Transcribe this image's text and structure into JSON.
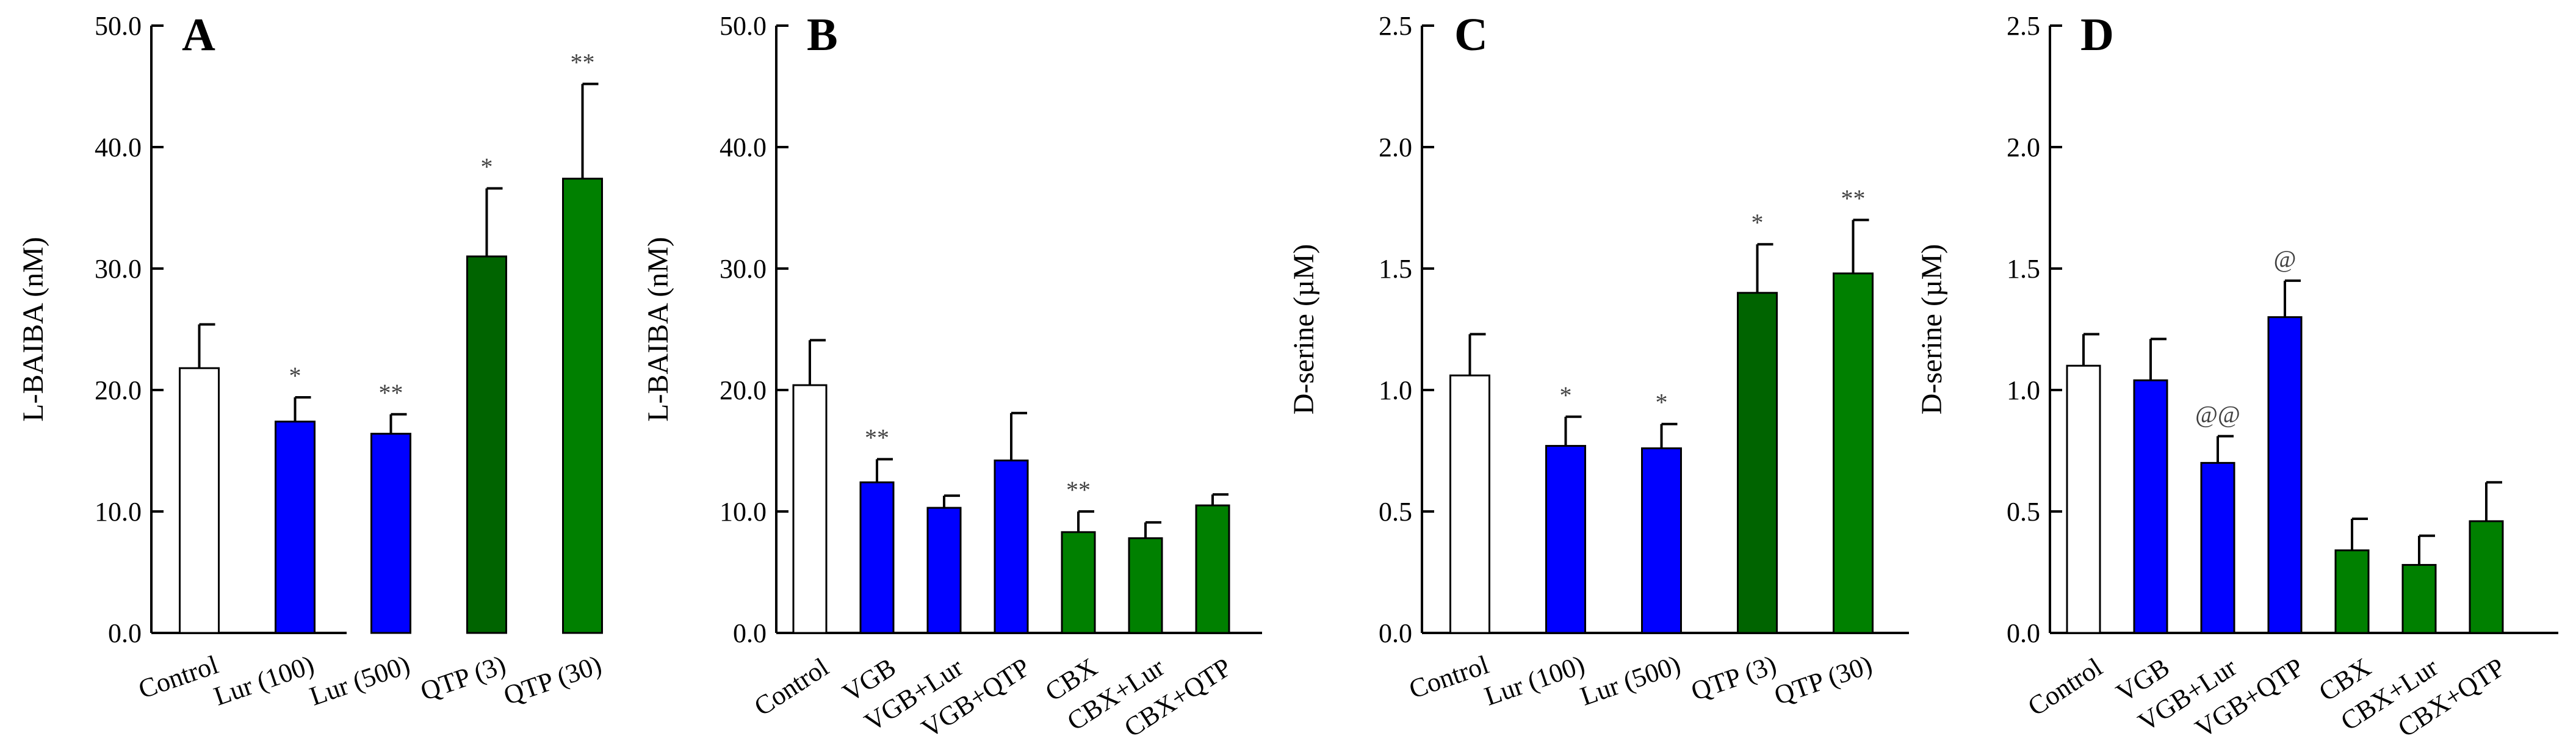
{
  "colors": {
    "control": "#ffffff",
    "blue": "#0000ff",
    "dark_green": "#006400",
    "green": "#008000",
    "outline": "#000000"
  },
  "chart_data": [
    {
      "panel_label": "A",
      "type": "bar",
      "ylabel": "L-BAIBA (nM)",
      "ylim": [
        0,
        50
      ],
      "yticks": [
        "0.0",
        "10.0",
        "20.0",
        "30.0",
        "40.0",
        "50.0"
      ],
      "categories": [
        "Control",
        "Lur (100)",
        "Lur (500)",
        "QTP (3)",
        "QTP (30)"
      ],
      "values": [
        21.8,
        17.4,
        16.4,
        31.0,
        37.4
      ],
      "errors": [
        3.6,
        2.0,
        1.6,
        5.6,
        7.8
      ],
      "significance": [
        "",
        "*",
        "**",
        "*",
        "**"
      ],
      "bar_colors": [
        "control",
        "blue",
        "blue",
        "dark_green",
        "green"
      ]
    },
    {
      "panel_label": "B",
      "type": "bar",
      "ylabel": "L-BAIBA (nM)",
      "ylim": [
        0,
        50
      ],
      "yticks": [
        "0.0",
        "10.0",
        "20.0",
        "30.0",
        "40.0",
        "50.0"
      ],
      "categories": [
        "Control",
        "VGB",
        "VGB+Lur",
        "VGB+QTP",
        "CBX",
        "CBX+Lur",
        "CBX+QTP"
      ],
      "values": [
        20.4,
        12.4,
        10.3,
        14.2,
        8.3,
        7.8,
        10.5
      ],
      "errors": [
        3.7,
        1.9,
        1.0,
        3.9,
        1.7,
        1.3,
        0.9
      ],
      "significance": [
        "",
        "**",
        "",
        "",
        "**",
        "",
        ""
      ],
      "bar_colors": [
        "control",
        "blue",
        "blue",
        "blue",
        "green",
        "green",
        "green"
      ]
    },
    {
      "panel_label": "C",
      "type": "bar",
      "ylabel": "D-serine (µM)",
      "ylim": [
        0,
        2.5
      ],
      "yticks": [
        "0.0",
        "0.5",
        "1.0",
        "1.5",
        "2.0",
        "2.5"
      ],
      "categories": [
        "Control",
        "Lur (100)",
        "Lur (500)",
        "QTP (3)",
        "QTP (30)"
      ],
      "values": [
        1.06,
        0.77,
        0.76,
        1.4,
        1.48
      ],
      "errors": [
        0.17,
        0.12,
        0.1,
        0.2,
        0.22
      ],
      "significance": [
        "",
        "*",
        "*",
        "*",
        "**"
      ],
      "bar_colors": [
        "control",
        "blue",
        "blue",
        "dark_green",
        "green"
      ]
    },
    {
      "panel_label": "D",
      "type": "bar",
      "ylabel": "D-serine (µM)",
      "ylim": [
        0,
        2.5
      ],
      "yticks": [
        "0.0",
        "0.5",
        "1.0",
        "1.5",
        "2.0",
        "2.5"
      ],
      "categories": [
        "Control",
        "VGB",
        "VGB+Lur",
        "VGB+QTP",
        "CBX",
        "CBX+Lur",
        "CBX+QTP"
      ],
      "values": [
        1.1,
        1.04,
        0.7,
        1.3,
        0.34,
        0.28,
        0.46
      ],
      "errors": [
        0.13,
        0.17,
        0.11,
        0.15,
        0.13,
        0.12,
        0.16
      ],
      "significance": [
        "",
        "",
        "@@",
        "@",
        "",
        "",
        ""
      ],
      "bar_colors": [
        "control",
        "blue",
        "blue",
        "blue",
        "green",
        "green",
        "green"
      ]
    }
  ]
}
